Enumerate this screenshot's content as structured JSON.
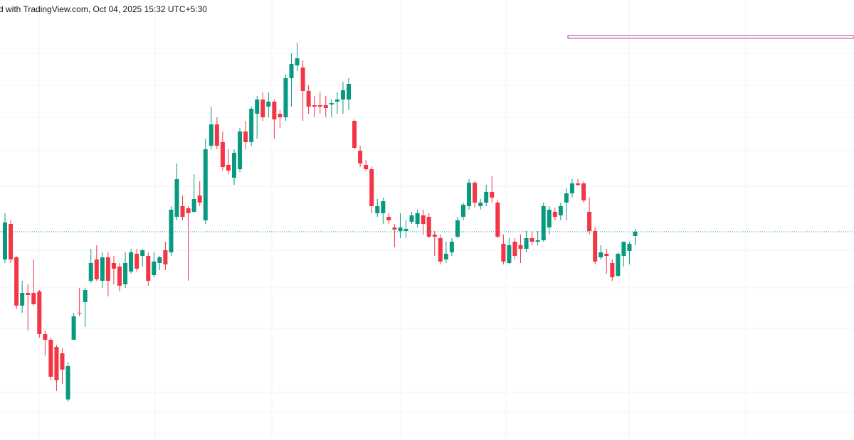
{
  "chart_data": {
    "type": "candlestick",
    "title": "d with TradingView.com, Oct 04, 2025 15:32 UTC+5:30",
    "up_color": "#089981",
    "down_color": "#f23645",
    "ylim": [
      0,
      619
    ],
    "open": [
      254,
      304,
      257,
      189,
      207,
      207,
      209,
      149,
      141,
      131,
      122,
      57,
      141,
      179,
      194,
      224,
      254,
      224,
      257,
      249,
      244,
      219,
      237,
      262,
      259,
      259,
      232,
      249,
      267,
      264,
      314,
      329,
      326,
      321,
      344,
      309,
      414,
      444,
      419,
      387,
      369,
      381,
      434,
      419,
      459,
      479,
      469,
      476,
      459,
      454,
      509,
      527,
      524,
      491,
      471,
      471,
      471,
      472,
      476,
      479,
      479,
      449,
      407,
      387,
      381,
      319,
      319,
      314,
      299,
      294,
      294,
      307,
      304,
      316,
      314,
      289,
      284,
      254,
      264,
      286,
      314,
      329,
      362,
      329,
      334,
      349,
      334,
      276,
      249,
      279,
      274,
      269,
      284,
      279,
      281,
      299,
      321,
      316,
      334,
      347,
      361,
      361,
      321,
      294,
      257,
      262,
      249,
      231,
      259,
      266,
      287
    ],
    "high": [
      319,
      309,
      259,
      224,
      219,
      254,
      211,
      154,
      144,
      134,
      129,
      109,
      179,
      214,
      214,
      269,
      274,
      264,
      264,
      259,
      249,
      264,
      269,
      269,
      269,
      264,
      264,
      259,
      279,
      329,
      389,
      344,
      329,
      374,
      364,
      424,
      469,
      454,
      434,
      409,
      409,
      439,
      449,
      469,
      484,
      489,
      489,
      479,
      464,
      514,
      544,
      559,
      534,
      499,
      484,
      489,
      484,
      479,
      489,
      504,
      509,
      451,
      414,
      394,
      384,
      339,
      341,
      319,
      304,
      319,
      309,
      321,
      324,
      324,
      319,
      294,
      289,
      279,
      284,
      314,
      334,
      367,
      364,
      339,
      359,
      371,
      337,
      289,
      284,
      284,
      289,
      294,
      294,
      294,
      334,
      329,
      327,
      334,
      354,
      367,
      367,
      364,
      341,
      299,
      274,
      269,
      254,
      264,
      279,
      279,
      297
    ],
    "low": [
      249,
      249,
      184,
      179,
      154,
      189,
      144,
      119,
      84,
      69,
      79,
      54,
      141,
      174,
      159,
      221,
      224,
      214,
      202,
      219,
      209,
      214,
      234,
      237,
      244,
      217,
      229,
      239,
      239,
      259,
      309,
      309,
      224,
      319,
      329,
      304,
      409,
      409,
      379,
      374,
      359,
      377,
      409,
      414,
      424,
      449,
      454,
      424,
      439,
      449,
      469,
      519,
      449,
      459,
      454,
      459,
      454,
      454,
      459,
      459,
      464,
      409,
      384,
      379,
      319,
      314,
      304,
      304,
      271,
      284,
      284,
      304,
      299,
      289,
      284,
      259,
      247,
      249,
      259,
      284,
      309,
      324,
      327,
      324,
      329,
      334,
      284,
      247,
      247,
      254,
      249,
      264,
      274,
      274,
      279,
      289,
      309,
      309,
      309,
      341,
      357,
      334,
      289,
      247,
      254,
      234,
      224,
      229,
      244,
      247,
      274
    ],
    "close": [
      306,
      254,
      189,
      207,
      204,
      191,
      149,
      141,
      89,
      84,
      99,
      104,
      174,
      178,
      211,
      249,
      226,
      257,
      224,
      241,
      217,
      249,
      264,
      241,
      267,
      224,
      251,
      257,
      247,
      324,
      367,
      314,
      319,
      339,
      334,
      409,
      444,
      414,
      384,
      379,
      404,
      434,
      419,
      466,
      479,
      454,
      476,
      451,
      454,
      509,
      529,
      537,
      491,
      469,
      469,
      469,
      467,
      474,
      479,
      492,
      501,
      411,
      389,
      381,
      329,
      329,
      336,
      309,
      296,
      299,
      297,
      316,
      319,
      304,
      286,
      286,
      251,
      262,
      279,
      309,
      331,
      362,
      334,
      334,
      349,
      341,
      286,
      251,
      274,
      259,
      269,
      284,
      279,
      281,
      329,
      324,
      314,
      329,
      347,
      361,
      359,
      337,
      294,
      251,
      264,
      259,
      229,
      262,
      279,
      276,
      293
    ]
  }
}
